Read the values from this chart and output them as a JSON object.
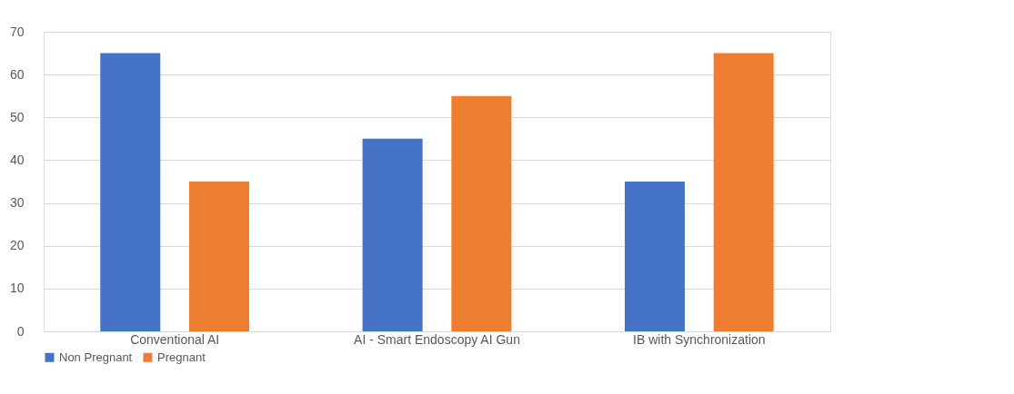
{
  "chart_data": {
    "type": "bar",
    "categories": [
      "Conventional AI",
      "AI - Smart Endoscopy AI Gun",
      "IB with Synchronization"
    ],
    "series": [
      {
        "name": "Non Pregnant",
        "color": "#4472c4",
        "values": [
          65,
          45,
          35
        ]
      },
      {
        "name": "Pregnant",
        "color": "#ed7d31",
        "values": [
          35,
          55,
          65
        ]
      }
    ],
    "ylim": [
      0,
      70
    ],
    "yticks": [
      0,
      10,
      20,
      30,
      40,
      50,
      60,
      70
    ],
    "grid": "y",
    "legend": "bottom"
  }
}
